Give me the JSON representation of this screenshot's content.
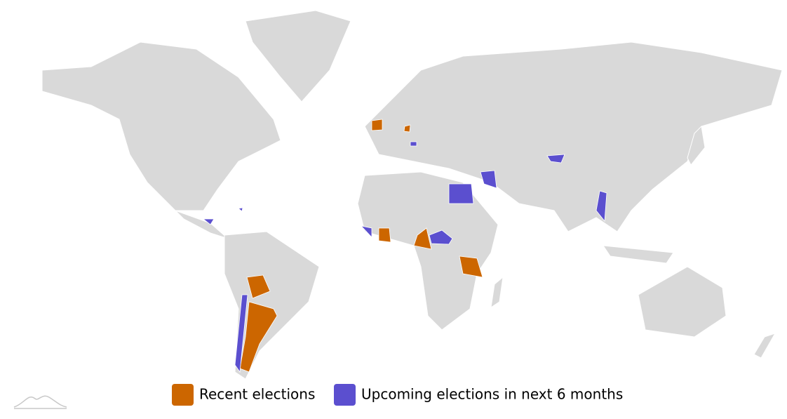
{
  "legend": {
    "items": [
      {
        "name": "Recent elections",
        "color": "#cc6600"
      },
      {
        "name": "Upcoming elections in next 6 months",
        "color": "#5b4fcf"
      }
    ]
  }
}
